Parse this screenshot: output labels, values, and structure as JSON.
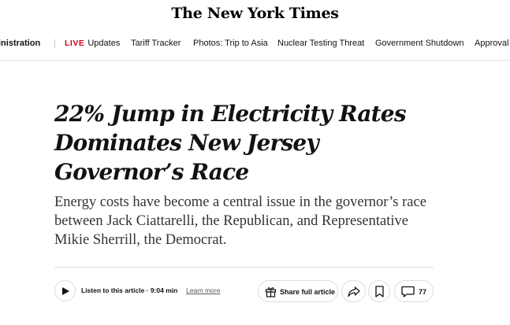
{
  "masthead": {
    "title": "The New York Times"
  },
  "nav": {
    "items": [
      {
        "label": "inistration"
      },
      {
        "live": "LIVE",
        "label": "Updates"
      },
      {
        "label": "Tariff Tracker"
      },
      {
        "label": "Photos: Trip to Asia"
      },
      {
        "label": "Nuclear Testing Threat"
      },
      {
        "label": "Government Shutdown"
      },
      {
        "label": "Approval"
      }
    ]
  },
  "article": {
    "headline": "22% Jump in Electricity Rates Dominates New Jersey Governor’s Race",
    "summary": "Energy costs have become a central issue in the governor’s race between Jack Ciattarelli, the Republican, and Representative Mikie Sherrill, the Democrat."
  },
  "toolbar": {
    "listen_label": "Listen to this article · 9:04 min",
    "learn_more": "Learn more",
    "share_label": "Share full article",
    "comments_count": "77"
  },
  "icons": {
    "play": "play-icon",
    "gift": "gift-icon",
    "share": "share-arrow-icon",
    "bookmark": "bookmark-icon",
    "comment": "comment-icon"
  },
  "colors": {
    "live": "#d0021b",
    "text": "#121212",
    "border": "#dcdcdc"
  }
}
